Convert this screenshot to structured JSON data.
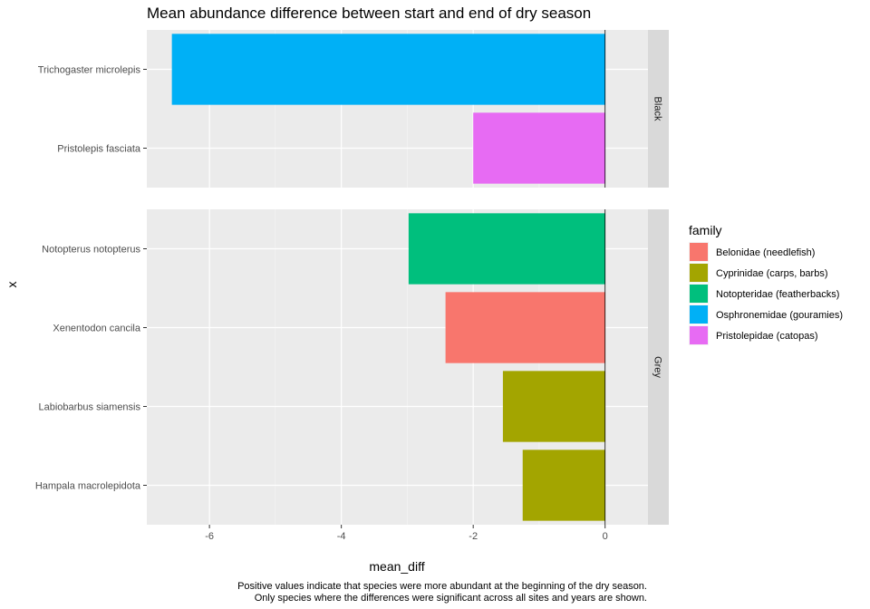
{
  "chart_data": {
    "type": "bar",
    "orientation": "horizontal",
    "title": "Mean abundance difference between start and end of dry season",
    "xlabel": "mean_diff",
    "ylabel": "x",
    "xlim": [
      -6.95,
      0.65
    ],
    "xticks": [
      -6,
      -4,
      -2,
      0
    ],
    "grid": true,
    "legend": {
      "title": "family",
      "placement": "right",
      "entries": [
        {
          "label": "Belonidae (needlefish)",
          "color": "#F8766D"
        },
        {
          "label": "Cyprinidae (carps, barbs)",
          "color": "#A3A500"
        },
        {
          "label": "Notopteridae (featherbacks)",
          "color": "#00BF7D"
        },
        {
          "label": "Osphronemidae (gouramies)",
          "color": "#00B0F6"
        },
        {
          "label": "Pristolepidae (catopas)",
          "color": "#E76BF3"
        }
      ]
    },
    "facets": [
      {
        "strip": "Black",
        "bars": [
          {
            "species": "Trichogaster microlepis",
            "value": -6.57,
            "family": "Osphronemidae (gouramies)"
          },
          {
            "species": "Pristolepis fasciata",
            "value": -2.0,
            "family": "Pristolepidae (catopas)"
          }
        ]
      },
      {
        "strip": "Grey",
        "bars": [
          {
            "species": "Notopterus notopterus",
            "value": -2.98,
            "family": "Notopteridae (featherbacks)"
          },
          {
            "species": "Xenentodon cancila",
            "value": -2.42,
            "family": "Belonidae (needlefish)"
          },
          {
            "species": "Labiobarbus siamensis",
            "value": -1.55,
            "family": "Cyprinidae (carps, barbs)"
          },
          {
            "species": "Hampala macrolepidota",
            "value": -1.25,
            "family": "Cyprinidae (carps, barbs)"
          }
        ]
      }
    ],
    "caption": [
      "Positive values indicate that species were more abundant at the beginning of the dry season.",
      "Only species where the differences were significant across all sites and years are shown."
    ]
  }
}
